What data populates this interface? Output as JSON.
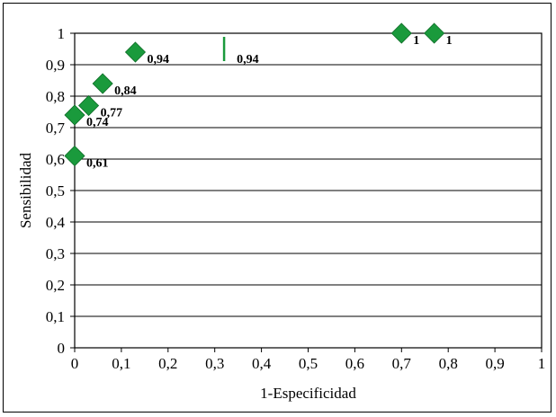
{
  "chart_data": {
    "type": "scatter",
    "title": "",
    "xlabel": "1-Especificidad",
    "ylabel": "Sensibilidad",
    "xlim": [
      0,
      1
    ],
    "ylim": [
      0,
      1
    ],
    "grid": "horizontal",
    "marker": "diamond",
    "marker_color": "#1a9a3c",
    "x_ticks": [
      "0",
      "0,1",
      "0,2",
      "0,3",
      "0,4",
      "0,5",
      "0,6",
      "0,7",
      "0,8",
      "0,9",
      "1"
    ],
    "y_ticks": [
      "0",
      "0,1",
      "0,2",
      "0,3",
      "0,4",
      "0,5",
      "0,6",
      "0,7",
      "0,8",
      "0,9",
      "1"
    ],
    "points": [
      {
        "x": 0.0,
        "y": 0.61,
        "label": "0,61"
      },
      {
        "x": 0.0,
        "y": 0.74,
        "label": "0,74"
      },
      {
        "x": 0.03,
        "y": 0.77,
        "label": "0,77"
      },
      {
        "x": 0.06,
        "y": 0.84,
        "label": "0,84"
      },
      {
        "x": 0.13,
        "y": 0.94,
        "label": "0,94"
      },
      {
        "x": 0.7,
        "y": 1.0,
        "label": "1"
      },
      {
        "x": 0.77,
        "y": 1.0,
        "label": "1"
      }
    ],
    "partial_marks": [
      {
        "x": 0.32,
        "y": 0.94,
        "label": "0,94"
      }
    ]
  }
}
